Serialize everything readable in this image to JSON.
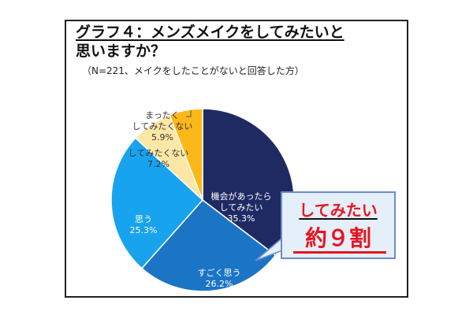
{
  "header": {
    "title_line1": "グラフ４：メンズメイクをしてみたいと",
    "title_line2": "思いますか？",
    "subtitle": "（N=221、メイクをしたことがないと回答した方）"
  },
  "callout": {
    "line1": "してみたい",
    "line2": "約９割"
  },
  "chart_data": {
    "type": "pie",
    "title": "グラフ４：メンズメイクをしてみたいと思いますか？",
    "subtitle": "（N=221、メイクをしたことがないと回答した方）",
    "slices": [
      {
        "label_lines": [
          "機会があったら",
          "してみたい"
        ],
        "value": 35.3,
        "value_text": "35.3%",
        "color": "#1f2a63",
        "text_color": "#ffffff"
      },
      {
        "label_lines": [
          "すごく思う"
        ],
        "value": 26.2,
        "value_text": "26.2%",
        "color": "#1c74c4",
        "text_color": "#ffffff"
      },
      {
        "label_lines": [
          "思う"
        ],
        "value": 25.3,
        "value_text": "25.3%",
        "color": "#18a3ee",
        "text_color": "#ffffff"
      },
      {
        "label_lines": [
          "してみたくない"
        ],
        "value": 7.2,
        "value_text": "7.2%",
        "color": "#fde7a6",
        "text_color": "#333333"
      },
      {
        "label_lines": [
          "まったく",
          "してみたくない"
        ],
        "value": 5.9,
        "value_text": "5.9%",
        "color": "#fbb818",
        "text_color": "#333333"
      }
    ],
    "start_angle_deg": 0,
    "direction": "clockwise"
  },
  "colors": {
    "callout_text": "#e8141e",
    "callout_bg": "#e4eff9",
    "callout_border": "#6b8ec9"
  }
}
